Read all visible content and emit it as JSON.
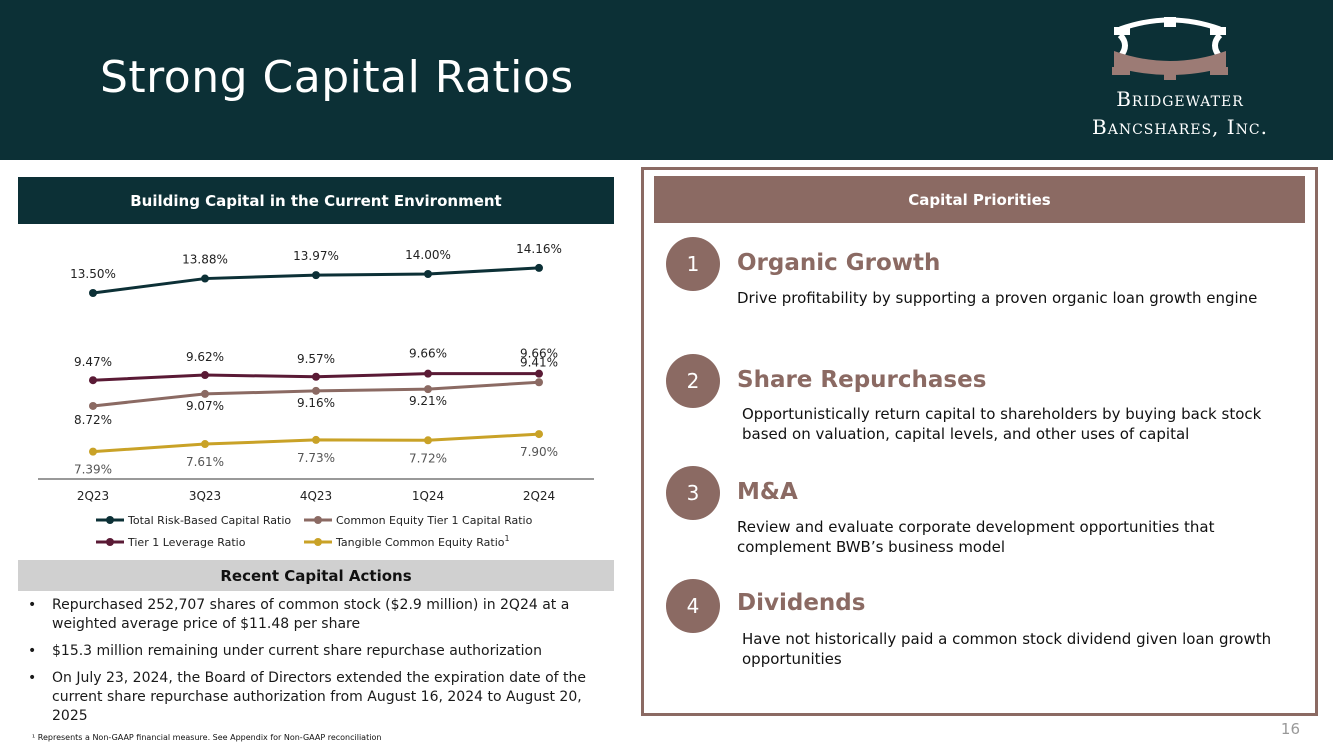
{
  "title": "Strong Capital Ratios",
  "logo": {
    "line1": "Bridgewater",
    "line2": "Bancshares, Inc."
  },
  "left_header": "Building Capital in the Current Environment",
  "chart_data": {
    "type": "line",
    "categories": [
      "2Q23",
      "3Q23",
      "4Q23",
      "1Q24",
      "2Q24"
    ],
    "series": [
      {
        "name": "Total Risk-Based Capital Ratio",
        "color": "#0c3036",
        "values": [
          13.5,
          13.88,
          13.97,
          14.0,
          14.16
        ],
        "labels": [
          "13.50%",
          "13.88%",
          "13.97%",
          "14.00%",
          "14.16%"
        ]
      },
      {
        "name": "Common Equity Tier 1 Capital Ratio",
        "color": "#8b6a63",
        "values": [
          8.72,
          9.07,
          9.16,
          9.21,
          9.41
        ],
        "labels": [
          "8.72%",
          "9.07%",
          "9.16%",
          "9.21%",
          "9.41%"
        ]
      },
      {
        "name": "Tier 1 Leverage Ratio",
        "color": "#5a1a35",
        "values": [
          9.47,
          9.62,
          9.57,
          9.66,
          9.66
        ],
        "labels": [
          "9.47%",
          "9.62%",
          "9.57%",
          "9.66%",
          "9.66%"
        ]
      },
      {
        "name": "Tangible Common Equity Ratio",
        "superscript": "1",
        "color": "#c9a227",
        "values": [
          7.39,
          7.61,
          7.73,
          7.72,
          7.9
        ],
        "labels": [
          "7.39%",
          "7.61%",
          "7.73%",
          "7.72%",
          "7.90%"
        ]
      }
    ],
    "ylim": [
      7.0,
      14.5
    ],
    "legend_position": "bottom"
  },
  "actions_header": "Recent Capital Actions",
  "actions": [
    "Repurchased 252,707 shares of common stock ($2.9 million) in 2Q24 at a weighted average price of $11.48 per share",
    "$15.3 million remaining under current share repurchase authorization",
    "On July 23, 2024, the Board of Directors extended the expiration date of the current share repurchase authorization from August 16, 2024 to August 20, 2025"
  ],
  "bullet_char": "•",
  "footnote": "¹ Represents a Non-GAAP financial measure. See Appendix for Non-GAAP reconciliation",
  "right_header": "Capital Priorities",
  "priorities": [
    {
      "number": "1",
      "title": "Organic Growth",
      "description": "Drive profitability by supporting a proven organic loan growth engine"
    },
    {
      "number": "2",
      "title": "Share Repurchases",
      "description": "Opportunistically return capital to shareholders by buying back stock based on valuation, capital levels, and other uses of capital"
    },
    {
      "number": "3",
      "title": "M&A",
      "description": "Review and evaluate corporate development opportunities that complement BWB’s business model"
    },
    {
      "number": "4",
      "title": "Dividends",
      "description": "Have not historically paid a common stock dividend given loan growth opportunities"
    }
  ],
  "page_number": "16",
  "colors": {
    "dark_teal": "#0c3036",
    "mauve": "#8b6a63",
    "gold": "#c9a227",
    "plum": "#5a1a35"
  }
}
